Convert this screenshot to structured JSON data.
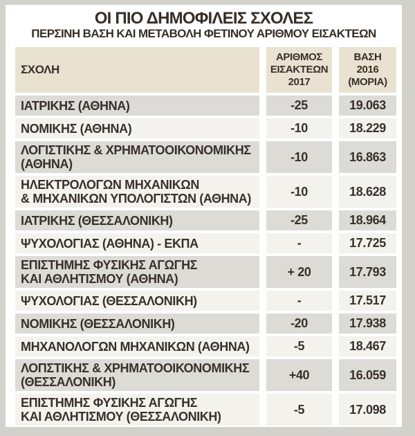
{
  "page": {
    "title": "ΟΙ ΠΙΟ ΔΗΜΟΦΙΛΕΙΣ ΣΧΟΛΕΣ",
    "subtitle": "ΠΕΡΣΙΝΗ ΒΑΣΗ ΚΑΙ ΜΕΤΑΒΟΛΗ ΦΕΤΙΝΟΥ ΑΡΙΘΜΟΥ ΕΙΣΑΚΤΕΩΝ"
  },
  "colors": {
    "frame": "#d3d1cb",
    "panel": "#ffffff",
    "header_bg": "#e9e2d1",
    "row_dark": "#dcdbd6",
    "row_light": "#f3f2ed",
    "text": "#38302a"
  },
  "table": {
    "headers": {
      "school": "ΣΧΟΛΗ",
      "change": "ΑΡΙΘΜΟΣ\nΕΙΣΑΚΤΕΩΝ\n2017",
      "base": "ΒΑΣΗ\n2016\n(ΜΟΡΙΑ)"
    },
    "rows": [
      {
        "school": "ΙΑΤΡΙΚΗΣ (ΑΘΗΝΑ)",
        "change": "-25",
        "base": "19.063"
      },
      {
        "school": "ΝΟΜΙΚΗΣ (ΑΘΗΝΑ)",
        "change": "-10",
        "base": "18.229"
      },
      {
        "school": "ΛΟΓΙΣΤΙΚΗΣ & ΧΡΗΜΑΤΟΟΙΚΟΝΟΜΙΚΗΣ\n(ΑΘΗΝΑ)",
        "change": "-10",
        "base": "16.863"
      },
      {
        "school": "ΗΛΕΚΤΡΟΛΟΓΩΝ ΜΗΧΑΝΙΚΩΝ\n& ΜΗΧΑΝΙΚΩΝ ΥΠΟΛΟΓΙΣΤΩΝ (ΑΘΗΝΑ)",
        "change": "-10",
        "base": "18.628"
      },
      {
        "school": "ΙΑΤΡΙΚΗΣ (ΘΕΣΣΑΛΟΝΙΚΗ)",
        "change": "-25",
        "base": "18.964"
      },
      {
        "school": "ΨΥΧΟΛΟΓΙΑΣ (ΑΘΗΝΑ) - ΕΚΠΑ",
        "change": "-",
        "base": "17.725"
      },
      {
        "school": "ΕΠΙΣΤΗΜΗΣ ΦΥΣΙΚΗΣ ΑΓΩΓΗΣ\nΚΑΙ ΑΘΛΗΤΙΣΜΟΥ (ΑΘΗΝΑ)",
        "change": "+ 20",
        "base": "17.793"
      },
      {
        "school": "ΨΥΧΟΛΟΓΙΑΣ (ΘΕΣΣΑΛΟΝΙΚΗ)",
        "change": "-",
        "base": "17.517"
      },
      {
        "school": "ΝΟΜΙΚΗΣ (ΘΕΣΣΑΛΟΝΙΚΗ)",
        "change": "-20",
        "base": "17.938"
      },
      {
        "school": "ΜΗΧΑΝΟΛΟΓΩΝ ΜΗΧΑΝΙΚΩΝ (ΑΘΗΝΑ)",
        "change": "-5",
        "base": "18.467"
      },
      {
        "school": "ΛΟΠΣΤΙΚΗΣ & ΧΡΗΜΑΤΟΟΙΚΟΝΟΜΙΚΗΣ\n(ΘΕΣΣΑΛΟΝΙΚΗ)",
        "change": "+40",
        "base": "16.059"
      },
      {
        "school": "ΕΠΙΣΤΗΜΗΣ ΦΥΣΙΚΗΣ ΑΓΩΓΗΣ\nΚΑΙ ΑΘΛΗΤΙΣΜΟΥ (ΘΕΣΣΑΛΟΝΙΚΗ)",
        "change": "-5",
        "base": "17.098"
      }
    ]
  },
  "chart_data": {
    "type": "table",
    "title": "ΟΙ ΠΙΟ ΔΗΜΟΦΙΛΕΙΣ ΣΧΟΛΕΣ",
    "subtitle": "ΠΕΡΣΙΝΗ ΒΑΣΗ ΚΑΙ ΜΕΤΑΒΟΛΗ ΦΕΤΙΝΟΥ ΑΡΙΘΜΟΥ ΕΙΣΑΚΤΕΩΝ",
    "columns": [
      "ΣΧΟΛΗ",
      "ΑΡΙΘΜΟΣ ΕΙΣΑΚΤΕΩΝ 2017",
      "ΒΑΣΗ 2016 (ΜΟΡΙΑ)"
    ],
    "rows": [
      [
        "ΙΑΤΡΙΚΗΣ (ΑΘΗΝΑ)",
        "-25",
        "19.063"
      ],
      [
        "ΝΟΜΙΚΗΣ (ΑΘΗΝΑ)",
        "-10",
        "18.229"
      ],
      [
        "ΛΟΓΙΣΤΙΚΗΣ & ΧΡΗΜΑΤΟΟΙΚΟΝΟΜΙΚΗΣ (ΑΘΗΝΑ)",
        "-10",
        "16.863"
      ],
      [
        "ΗΛΕΚΤΡΟΛΟΓΩΝ ΜΗΧΑΝΙΚΩΝ & ΜΗΧΑΝΙΚΩΝ ΥΠΟΛΟΓΙΣΤΩΝ (ΑΘΗΝΑ)",
        "-10",
        "18.628"
      ],
      [
        "ΙΑΤΡΙΚΗΣ (ΘΕΣΣΑΛΟΝΙΚΗ)",
        "-25",
        "18.964"
      ],
      [
        "ΨΥΧΟΛΟΓΙΑΣ (ΑΘΗΝΑ) - ΕΚΠΑ",
        "-",
        "17.725"
      ],
      [
        "ΕΠΙΣΤΗΜΗΣ ΦΥΣΙΚΗΣ ΑΓΩΓΗΣ ΚΑΙ ΑΘΛΗΤΙΣΜΟΥ (ΑΘΗΝΑ)",
        "+ 20",
        "17.793"
      ],
      [
        "ΨΥΧΟΛΟΓΙΑΣ (ΘΕΣΣΑΛΟΝΙΚΗ)",
        "-",
        "17.517"
      ],
      [
        "ΝΟΜΙΚΗΣ (ΘΕΣΣΑΛΟΝΙΚΗ)",
        "-20",
        "17.938"
      ],
      [
        "ΜΗΧΑΝΟΛΟΓΩΝ ΜΗΧΑΝΙΚΩΝ (ΑΘΗΝΑ)",
        "-5",
        "18.467"
      ],
      [
        "ΛΟΠΣΤΙΚΗΣ & ΧΡΗΜΑΤΟΟΙΚΟΝΟΜΙΚΗΣ (ΘΕΣΣΑΛΟΝΙΚΗ)",
        "+40",
        "16.059"
      ],
      [
        "ΕΠΙΣΤΗΜΗΣ ΦΥΣΙΚΗΣ ΑΓΩΓΗΣ ΚΑΙ ΑΘΛΗΤΙΣΜΟΥ (ΘΕΣΣΑΛΟΝΙΚΗ)",
        "-5",
        "17.098"
      ]
    ]
  }
}
